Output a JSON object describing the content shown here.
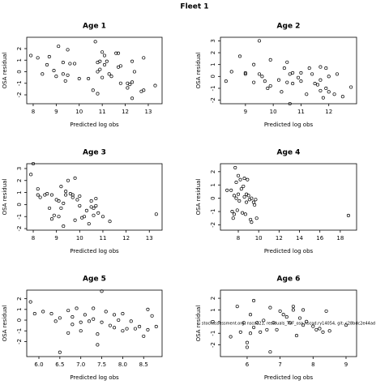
{
  "title": "Fleet 1",
  "chart_data": [
    {
      "type": "scatter",
      "title": "Age 1",
      "xlabel": "Predicted log obs",
      "ylabel": "OSA residual",
      "x": [
        7.9,
        8.2,
        8.4,
        8.6,
        8.7,
        8.9,
        9.0,
        9.1,
        9.3,
        9.3,
        9.4,
        9.5,
        9.5,
        9.6,
        9.8,
        10.0,
        10.4,
        10.6,
        10.7,
        10.8,
        10.8,
        10.8,
        10.9,
        10.9,
        11.0,
        11.0,
        11.1,
        11.1,
        11.2,
        11.3,
        11.4,
        11.6,
        11.7,
        11.7,
        11.8,
        11.8,
        12.1,
        12.1,
        12.2,
        12.3,
        12.3,
        12.3,
        12.4,
        12.7,
        12.8,
        12.8,
        13.3
      ],
      "y": [
        1.4,
        1.2,
        -0.2,
        0.6,
        1.3,
        0.1,
        -0.4,
        2.2,
        0.8,
        -0.2,
        -0.8,
        1.9,
        -0.3,
        0.7,
        0.7,
        -0.6,
        -0.6,
        -1.6,
        2.6,
        0.0,
        0.8,
        -1.9,
        0.9,
        0.2,
        -0.5,
        1.7,
        1.4,
        0.6,
        0.9,
        -0.2,
        -0.4,
        1.6,
        1.6,
        0.4,
        -1.0,
        0.5,
        -1.4,
        -1.0,
        -1.1,
        -2.3,
        -0.9,
        0.9,
        0.0,
        -1.7,
        1.2,
        -1.6,
        -1.2
      ],
      "xlim": [
        7.72,
        13.6
      ],
      "ylim": [
        -2.77,
        2.98
      ],
      "xticks": [
        8,
        9,
        10,
        11,
        12,
        13
      ],
      "yticks": [
        -2,
        -1,
        0,
        1,
        2
      ]
    },
    {
      "type": "scatter",
      "title": "Age 2",
      "xlabel": "Predicted log obs",
      "ylabel": "OSA residual",
      "x": [
        8.3,
        8.5,
        8.8,
        9.0,
        9.0,
        9.3,
        9.3,
        9.5,
        9.5,
        9.6,
        9.7,
        9.8,
        9.9,
        9.9,
        10.2,
        10.3,
        10.4,
        10.5,
        10.5,
        10.6,
        10.6,
        10.7,
        10.7,
        10.9,
        11.0,
        11.0,
        11.2,
        11.3,
        11.4,
        11.5,
        11.6,
        11.7,
        11.7,
        11.7,
        11.8,
        11.9,
        11.9,
        12.0,
        12.0,
        12.2,
        12.3,
        12.5,
        12.8
      ],
      "y": [
        -0.4,
        0.4,
        1.7,
        0.2,
        0.3,
        -0.5,
        1.0,
        3.0,
        0.2,
        0.0,
        -0.4,
        -1.0,
        -0.8,
        1.4,
        -0.3,
        -1.3,
        0.7,
        -0.5,
        1.2,
        0.2,
        -2.3,
        0.3,
        -0.6,
        -0.1,
        -0.4,
        0.3,
        -1.5,
        0.7,
        0.2,
        -0.6,
        -0.7,
        0.8,
        -0.3,
        -1.2,
        -1.8,
        0.7,
        -1.0,
        -1.3,
        0.0,
        -1.5,
        0.2,
        -1.7,
        -0.9
      ],
      "xlim": [
        8.1,
        13.0
      ],
      "ylim": [
        -2.3,
        3.3
      ],
      "xticks": [
        9,
        10,
        11,
        12
      ],
      "yticks": [
        -2,
        -1,
        0,
        1,
        2,
        3
      ]
    },
    {
      "type": "scatter",
      "title": "Age 3",
      "xlabel": "Predicted log obs",
      "ylabel": "OSA residual",
      "x": [
        7.9,
        8.0,
        8.2,
        8.2,
        8.3,
        8.5,
        8.6,
        8.7,
        8.8,
        8.8,
        8.9,
        9.0,
        9.1,
        9.1,
        9.2,
        9.2,
        9.3,
        9.3,
        9.4,
        9.4,
        9.5,
        9.6,
        9.7,
        9.7,
        9.8,
        9.8,
        9.9,
        10.0,
        10.0,
        10.1,
        10.2,
        10.3,
        10.4,
        10.5,
        10.5,
        10.6,
        10.6,
        10.7,
        10.7,
        10.8,
        11.0,
        11.3,
        13.3
      ],
      "y": [
        2.5,
        3.4,
        1.3,
        0.8,
        0.6,
        0.8,
        0.9,
        -0.3,
        -1.2,
        0.8,
        -0.9,
        0.4,
        -1.0,
        0.3,
        -0.3,
        1.5,
        0.1,
        -1.8,
        0.8,
        1.1,
        2.0,
        0.9,
        0.6,
        0.8,
        -1.3,
        2.2,
        0.4,
        -0.1,
        0.7,
        -1.1,
        -1.0,
        -0.5,
        -1.6,
        0.3,
        -0.2,
        -0.3,
        -0.9,
        -0.1,
        0.5,
        -0.7,
        -1.0,
        -1.4,
        -0.8
      ],
      "xlim": [
        7.72,
        13.55
      ],
      "ylim": [
        -2.13,
        3.4
      ],
      "xticks": [
        8,
        9,
        10,
        11,
        12,
        13
      ],
      "yticks": [
        -2,
        -1,
        0,
        1,
        2,
        3
      ]
    },
    {
      "type": "scatter",
      "title": "Age 4",
      "xlabel": "Predicted log obs",
      "ylabel": "OSA residual",
      "x": [
        6.9,
        7.3,
        7.4,
        7.5,
        7.6,
        7.6,
        7.7,
        7.8,
        7.8,
        7.9,
        8.0,
        8.0,
        8.1,
        8.2,
        8.3,
        8.4,
        8.5,
        8.6,
        8.6,
        8.7,
        8.8,
        8.8,
        8.9,
        9.0,
        9.1,
        9.2,
        9.3,
        9.3,
        9.5,
        9.6,
        9.7,
        9.8,
        18.8
      ],
      "y": [
        0.6,
        0.6,
        -1.0,
        -1.5,
        0.2,
        -1.2,
        2.3,
        1.2,
        0.0,
        -0.9,
        1.7,
        0.3,
        -0.2,
        1.4,
        0.7,
        -1.1,
        0.9,
        1.5,
        0.1,
        -1.2,
        0.3,
        -0.3,
        1.4,
        0.2,
        -0.1,
        -1.6,
        -1.8,
        0.0,
        -0.3,
        -0.5,
        -0.1,
        -1.5,
        -1.3
      ],
      "xlim": [
        6.25,
        19.6
      ],
      "ylim": [
        -2.4,
        2.6
      ],
      "xticks": [
        8,
        10,
        12,
        14,
        16,
        18
      ],
      "yticks": [
        -2,
        -1,
        0,
        1,
        2
      ]
    },
    {
      "type": "scatter",
      "title": "Age 5",
      "xlabel": "Predicted log obs",
      "ylabel": "OSA residual",
      "x": [
        5.8,
        5.9,
        6.1,
        6.3,
        6.4,
        6.5,
        6.5,
        6.7,
        6.7,
        6.8,
        6.8,
        6.9,
        7.0,
        7.0,
        7.1,
        7.2,
        7.3,
        7.3,
        7.4,
        7.4,
        7.5,
        7.5,
        7.6,
        7.7,
        7.8,
        7.8,
        7.9,
        8.0,
        8.0,
        8.1,
        8.2,
        8.3,
        8.4,
        8.5,
        8.6,
        8.6,
        8.7,
        8.8
      ],
      "y": [
        1.7,
        0.6,
        0.8,
        0.6,
        -0.1,
        0.2,
        -3.0,
        -1.2,
        0.9,
        -0.4,
        0.3,
        1.1,
        -0.2,
        -1.0,
        0.5,
        -0.1,
        1.1,
        0.1,
        -2.3,
        -1.3,
        2.7,
        -0.2,
        0.8,
        -0.5,
        -0.7,
        0.5,
        0.0,
        0.6,
        -1.0,
        -0.8,
        -0.1,
        -0.8,
        -0.6,
        -1.5,
        -0.9,
        1.0,
        0.4,
        -0.6
      ],
      "xlim": [
        5.71,
        8.94
      ],
      "ylim": [
        -3.4,
        2.8
      ],
      "xticks": [
        {
          "value": 6,
          "label": "6.0"
        },
        6.5,
        {
          "value": 7,
          "label": "7.0"
        },
        7.5,
        {
          "value": 8,
          "label": "8.0"
        },
        8.5
      ],
      "yticks": [
        -2,
        -1,
        0,
        1,
        2
      ]
    },
    {
      "type": "scatter",
      "title": "Age 6",
      "xlabel": "Predicted log obs",
      "ylabel": "OSA residual",
      "x": [
        5.5,
        5.7,
        5.8,
        5.9,
        6.0,
        6.0,
        6.1,
        6.1,
        6.2,
        6.2,
        6.3,
        6.4,
        6.5,
        6.6,
        6.7,
        6.7,
        6.8,
        6.9,
        7.0,
        7.1,
        7.2,
        7.3,
        7.4,
        7.4,
        7.5,
        7.6,
        7.7,
        7.7,
        7.8,
        8.0,
        8.1,
        8.2,
        8.3,
        8.4,
        8.5,
        9.0
      ],
      "y": [
        -1.3,
        1.3,
        -0.9,
        -0.1,
        -2.2,
        -1.8,
        -1.0,
        0.6,
        -0.5,
        1.8,
        -0.1,
        -0.9,
        0.1,
        -0.7,
        1.2,
        -2.6,
        -0.1,
        -0.7,
        0.9,
        0.6,
        0.4,
        -0.1,
        1.3,
        1.0,
        -1.2,
        0.3,
        1.0,
        -0.3,
        0.0,
        -0.4,
        -0.7,
        -0.6,
        -0.9,
        0.9,
        -0.8,
        -0.3
      ],
      "xlim": [
        5.19,
        9.32
      ],
      "ylim": [
        -3.0,
        2.7
      ],
      "xticks": [
        6,
        7,
        8,
        9
      ],
      "yticks": [
        -2,
        -1,
        0,
        1,
        2
      ],
      "annotation": "stockassessment.org, nscod21, residuals_TSF_osa.nscod.ry14054, git: c28bdc2e44ad"
    }
  ]
}
